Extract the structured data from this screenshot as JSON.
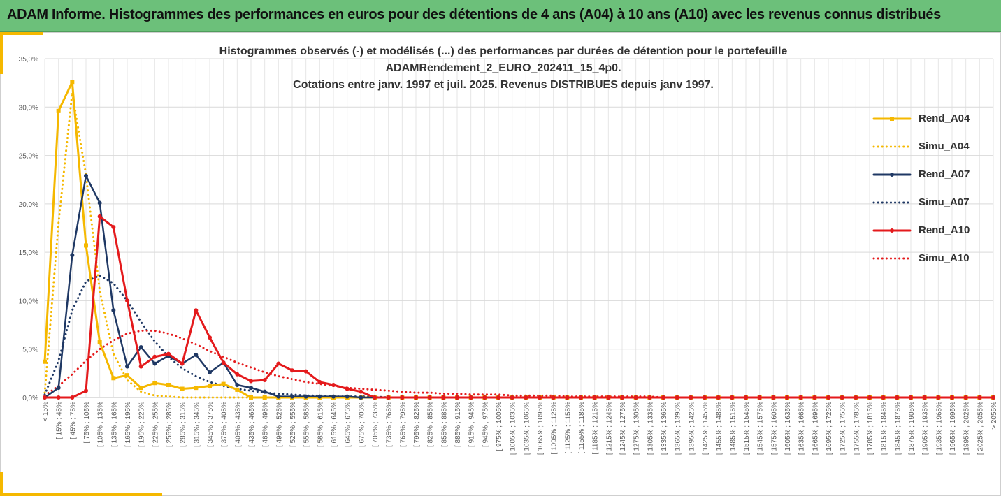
{
  "banner": {
    "title": "ADAM Informe. Histogrammes des performances en euros pour des détentions de 4 ans (A04) à 10 ans (A10) avec les revenus connus distribués"
  },
  "chart_data": {
    "type": "line",
    "title_lines": [
      "Histogrammes observés (-) et modélisés (...) des performances par durées de détention pour le portefeuille",
      "ADAMRendement_2_EURO_202411_15_4p0.",
      "Cotations entre janv. 1997 et juil. 2025. Revenus DISTRIBUES depuis janv 1997."
    ],
    "ylim": [
      0,
      35
    ],
    "yticks": [
      "0,0%",
      "5,0%",
      "10,0%",
      "15,0%",
      "20,0%",
      "25,0%",
      "30,0%",
      "35,0%"
    ],
    "grid": true,
    "legend_position": "right",
    "categories": [
      "< 15%",
      "[ 15% ; 45%",
      "[ 45% ; 75%",
      "[ 75% ; 105%",
      "[ 105% ; 135%",
      "[ 135% ; 165%",
      "[ 165% ; 195%",
      "[ 195% ; 225%",
      "[ 225% ; 255%",
      "[ 255% ; 285%",
      "[ 285% ; 315%",
      "[ 315% ; 345%",
      "[ 345% ; 375%",
      "[ 375% ; 405%",
      "[ 405% ; 435%",
      "[ 435% ; 465%",
      "[ 465% ; 495%",
      "[ 495% ; 525%",
      "[ 525% ; 555%",
      "[ 555% ; 585%",
      "[ 585% ; 615%",
      "[ 615% ; 645%",
      "[ 645% ; 675%",
      "[ 675% ; 705%",
      "[ 705% ; 735%",
      "[ 735% ; 765%",
      "[ 765% ; 795%",
      "[ 795% ; 825%",
      "[ 825% ; 855%",
      "[ 855% ; 885%",
      "[ 885% ; 915%",
      "[ 915% ; 945%",
      "[ 945% ; 975%",
      "[ 975% ; 1005%",
      "[ 1005% ; 1035%",
      "[ 1035% ; 1065%",
      "[ 1065% ; 1095%",
      "[ 1095% ; 1125%",
      "[ 1125% ; 1155%",
      "[ 1155% ; 1185%",
      "[ 1185% ; 1215%",
      "[ 1215% ; 1245%",
      "[ 1245% ; 1275%",
      "[ 1275% ; 1305%",
      "[ 1305% ; 1335%",
      "[ 1335% ; 1365%",
      "[ 1365% ; 1395%",
      "[ 1395% ; 1425%",
      "[ 1425% ; 1455%",
      "[ 1455% ; 1485%",
      "[ 1485% ; 1515%",
      "[ 1515% ; 1545%",
      "[ 1545% ; 1575%",
      "[ 1575% ; 1605%",
      "[ 1605% ; 1635%",
      "[ 1635% ; 1665%",
      "[ 1665% ; 1695%",
      "[ 1695% ; 1725%",
      "[ 1725% ; 1755%",
      "[ 1755% ; 1785%",
      "[ 1785% ; 1815%",
      "[ 1815% ; 1845%",
      "[ 1845% ; 1875%",
      "[ 1875% ; 1905%",
      "[ 1905% ; 1935%",
      "[ 1935% ; 1965%",
      "[ 1965% ; 1995%",
      "[ 1995% ; 2025%",
      "[ 2025% ; 2055%",
      "> 2055%"
    ],
    "series": [
      {
        "name": "Rend_A04",
        "style": "solid",
        "marker": "square",
        "color": "#f5b800",
        "values": [
          3.7,
          29.6,
          32.6,
          15.7,
          5.7,
          2.0,
          2.3,
          1.0,
          1.5,
          1.3,
          0.9,
          1.0,
          1.2,
          1.4,
          0.8,
          0.0,
          0.0,
          0.0,
          0.0,
          0.0,
          0.0,
          0.0,
          0.0,
          0.0,
          0.0,
          0.0,
          0.0,
          0.0,
          0.0,
          0.0,
          0.0,
          0.0,
          0.0,
          0.0,
          0.0,
          0.0,
          0.0,
          0.0,
          0.0,
          0.0,
          0.0,
          0.0,
          0.0,
          0.0,
          0.0,
          0.0,
          0.0,
          0.0,
          0.0,
          0.0,
          0.0,
          0.0,
          0.0,
          0.0,
          0.0,
          0.0,
          0.0,
          0.0,
          0.0,
          0.0,
          0.0,
          0.0,
          0.0,
          0.0,
          0.0,
          0.0,
          0.0,
          0.0,
          0.0,
          0.0
        ]
      },
      {
        "name": "Simu_A04",
        "style": "dotted",
        "marker": "none",
        "color": "#f5b800",
        "values": [
          0.5,
          18.0,
          31.5,
          23.0,
          11.0,
          4.5,
          1.8,
          0.6,
          0.2,
          0.1,
          0.0,
          0.0,
          0.0,
          0.0,
          0.0,
          0.0,
          0.0,
          0.0,
          0.0,
          0.0,
          0.0,
          0.0,
          0.0,
          0.0,
          0.0,
          0.0,
          0.0,
          0.0,
          0.0,
          0.0,
          0.0,
          0.0,
          0.0,
          0.0,
          0.0,
          0.0,
          0.0,
          0.0,
          0.0,
          0.0,
          0.0,
          0.0,
          0.0,
          0.0,
          0.0,
          0.0,
          0.0,
          0.0,
          0.0,
          0.0,
          0.0,
          0.0,
          0.0,
          0.0,
          0.0,
          0.0,
          0.0,
          0.0,
          0.0,
          0.0,
          0.0,
          0.0,
          0.0,
          0.0,
          0.0,
          0.0,
          0.0,
          0.0,
          0.0,
          0.0
        ]
      },
      {
        "name": "Rend_A07",
        "style": "solid",
        "marker": "circle",
        "color": "#1f3864",
        "values": [
          0.0,
          1.0,
          14.7,
          22.9,
          20.1,
          9.0,
          3.2,
          5.2,
          3.5,
          4.3,
          3.5,
          4.4,
          2.6,
          3.6,
          1.3,
          1.0,
          0.6,
          0.1,
          0.1,
          0.1,
          0.1,
          0.1,
          0.1,
          0.0,
          0.0,
          0.0,
          0.0,
          0.0,
          0.0,
          0.0,
          0.0,
          0.0,
          0.0,
          0.0,
          0.0,
          0.0,
          0.0,
          0.0,
          0.0,
          0.0,
          0.0,
          0.0,
          0.0,
          0.0,
          0.0,
          0.0,
          0.0,
          0.0,
          0.0,
          0.0,
          0.0,
          0.0,
          0.0,
          0.0,
          0.0,
          0.0,
          0.0,
          0.0,
          0.0,
          0.0,
          0.0,
          0.0,
          0.0,
          0.0,
          0.0,
          0.0,
          0.0,
          0.0,
          0.0,
          0.0
        ]
      },
      {
        "name": "Simu_A07",
        "style": "dotted",
        "marker": "none",
        "color": "#1f3864",
        "values": [
          0.3,
          3.8,
          9.0,
          12.0,
          12.6,
          11.8,
          10.0,
          7.8,
          5.8,
          4.2,
          3.0,
          2.2,
          1.6,
          1.2,
          0.9,
          0.7,
          0.5,
          0.4,
          0.3,
          0.2,
          0.2,
          0.1,
          0.1,
          0.1,
          0.1,
          0.0,
          0.0,
          0.0,
          0.0,
          0.0,
          0.0,
          0.0,
          0.0,
          0.0,
          0.0,
          0.0,
          0.0,
          0.0,
          0.0,
          0.0,
          0.0,
          0.0,
          0.0,
          0.0,
          0.0,
          0.0,
          0.0,
          0.0,
          0.0,
          0.0,
          0.0,
          0.0,
          0.0,
          0.0,
          0.0,
          0.0,
          0.0,
          0.0,
          0.0,
          0.0,
          0.0,
          0.0,
          0.0,
          0.0,
          0.0,
          0.0,
          0.0,
          0.0,
          0.0,
          0.0
        ]
      },
      {
        "name": "Rend_A10",
        "style": "solid",
        "marker": "circle",
        "color": "#e41a1c",
        "values": [
          0.0,
          0.0,
          0.0,
          0.7,
          18.7,
          17.6,
          10.0,
          3.2,
          4.2,
          4.5,
          3.5,
          9.0,
          6.2,
          3.6,
          2.4,
          1.7,
          1.8,
          3.5,
          2.8,
          2.7,
          1.6,
          1.3,
          0.9,
          0.6,
          0.0,
          0.0,
          0.0,
          0.0,
          0.0,
          0.0,
          0.0,
          0.0,
          0.0,
          0.0,
          0.0,
          0.0,
          0.0,
          0.0,
          0.0,
          0.0,
          0.0,
          0.0,
          0.0,
          0.0,
          0.0,
          0.0,
          0.0,
          0.0,
          0.0,
          0.0,
          0.0,
          0.0,
          0.0,
          0.0,
          0.0,
          0.0,
          0.0,
          0.0,
          0.0,
          0.0,
          0.0,
          0.0,
          0.0,
          0.0,
          0.0,
          0.0,
          0.0,
          0.0,
          0.0,
          0.0
        ]
      },
      {
        "name": "Simu_A10",
        "style": "dotted",
        "marker": "none",
        "color": "#e41a1c",
        "values": [
          0.2,
          1.2,
          2.4,
          3.8,
          5.0,
          5.9,
          6.6,
          6.9,
          6.9,
          6.6,
          6.1,
          5.5,
          4.8,
          4.2,
          3.6,
          3.1,
          2.6,
          2.2,
          1.9,
          1.6,
          1.4,
          1.2,
          1.0,
          0.9,
          0.8,
          0.7,
          0.6,
          0.5,
          0.5,
          0.4,
          0.4,
          0.3,
          0.3,
          0.3,
          0.2,
          0.2,
          0.2,
          0.2,
          0.1,
          0.1,
          0.1,
          0.1,
          0.1,
          0.1,
          0.1,
          0.0,
          0.0,
          0.0,
          0.0,
          0.0,
          0.0,
          0.0,
          0.0,
          0.0,
          0.0,
          0.0,
          0.0,
          0.0,
          0.0,
          0.0,
          0.0,
          0.0,
          0.0,
          0.0,
          0.0,
          0.0,
          0.0,
          0.0,
          0.0,
          0.0
        ]
      }
    ]
  }
}
